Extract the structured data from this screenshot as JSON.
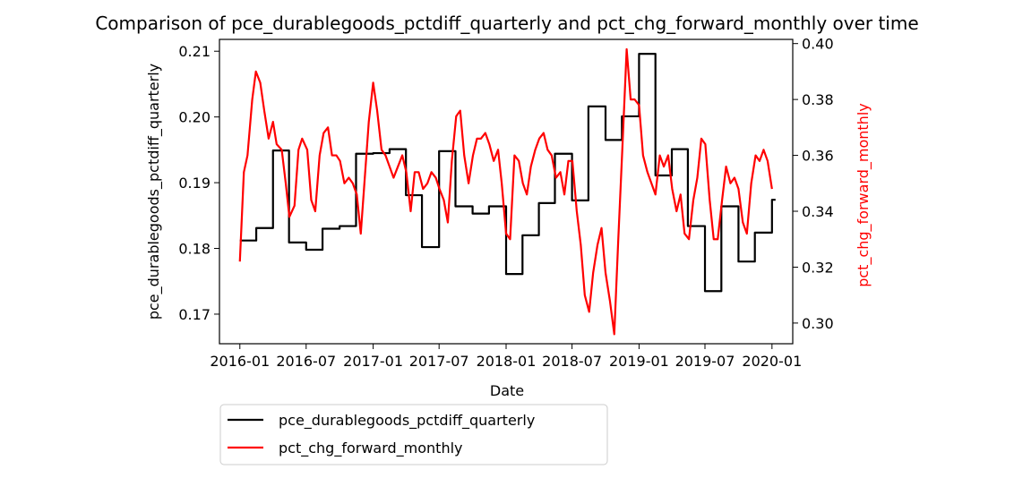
{
  "colors": {
    "left_series": "#000000",
    "right_series": "#ff0000",
    "background": "#ffffff"
  },
  "chart_data": {
    "type": "line",
    "title": "Comparison of pce_durablegoods_pctdiff_quarterly and pct_chg_forward_monthly over time",
    "xlabel": "Date",
    "ylabel_left": "pce_durablegoods_pctdiff_quarterly",
    "ylabel_right": "pct_chg_forward_monthly",
    "x_ticks": [
      "2016-01",
      "2016-07",
      "2017-01",
      "2017-07",
      "2018-01",
      "2018-07",
      "2019-01",
      "2019-07",
      "2020-01"
    ],
    "x_range": [
      "2015-11-06",
      "2020-02-27"
    ],
    "y_left": {
      "ticks": [
        "0.17",
        "0.18",
        "0.19",
        "0.20",
        "0.21"
      ],
      "range": [
        0.1655,
        0.2118
      ]
    },
    "y_right": {
      "ticks": [
        "0.30",
        "0.32",
        "0.34",
        "0.36",
        "0.38",
        "0.40"
      ],
      "range": [
        0.2926,
        0.4015
      ]
    },
    "grid": false,
    "legend_placement": "below plot, left",
    "legend": [
      "pce_durablegoods_pctdiff_quarterly",
      "pct_chg_forward_monthly"
    ],
    "series": [
      {
        "name": "pce_durablegoods_pctdiff_quarterly",
        "axis": "left",
        "color": "#000000",
        "step": true,
        "points": [
          [
            "2016-01-01",
            0.1812
          ],
          [
            "2016-02-15",
            0.1831
          ],
          [
            "2016-04-01",
            0.1949
          ],
          [
            "2016-05-15",
            0.1809
          ],
          [
            "2016-07-01",
            0.1798
          ],
          [
            "2016-08-15",
            0.183
          ],
          [
            "2016-10-01",
            0.1834
          ],
          [
            "2016-11-15",
            0.1944
          ],
          [
            "2017-01-01",
            0.1945
          ],
          [
            "2017-02-15",
            0.1951
          ],
          [
            "2017-04-01",
            0.1881
          ],
          [
            "2017-05-15",
            0.1802
          ],
          [
            "2017-07-01",
            0.1948
          ],
          [
            "2017-08-15",
            0.1864
          ],
          [
            "2017-10-01",
            0.1853
          ],
          [
            "2017-11-15",
            0.1864
          ],
          [
            "2018-01-01",
            0.1761
          ],
          [
            "2018-02-15",
            0.182
          ],
          [
            "2018-04-01",
            0.1869
          ],
          [
            "2018-05-15",
            0.1944
          ],
          [
            "2018-07-01",
            0.1873
          ],
          [
            "2018-08-15",
            0.2016
          ],
          [
            "2018-10-01",
            0.1965
          ],
          [
            "2018-11-15",
            0.2001
          ],
          [
            "2019-01-01",
            0.2096
          ],
          [
            "2019-02-15",
            0.1911
          ],
          [
            "2019-04-01",
            0.1951
          ],
          [
            "2019-05-15",
            0.1834
          ],
          [
            "2019-07-01",
            0.1735
          ],
          [
            "2019-08-15",
            0.1864
          ],
          [
            "2019-10-01",
            0.178
          ],
          [
            "2019-11-15",
            0.1824
          ],
          [
            "2020-01-01",
            0.1874
          ]
        ]
      },
      {
        "name": "pct_chg_forward_monthly",
        "axis": "right",
        "color": "#ff0000",
        "step": false,
        "points": [
          [
            "2016-01-01",
            0.322
          ],
          [
            "2016-01-12",
            0.354
          ],
          [
            "2016-01-22",
            0.36
          ],
          [
            "2016-02-04",
            0.38
          ],
          [
            "2016-02-14",
            0.39
          ],
          [
            "2016-02-26",
            0.386
          ],
          [
            "2016-03-08",
            0.376
          ],
          [
            "2016-03-20",
            0.366
          ],
          [
            "2016-04-01",
            0.372
          ],
          [
            "2016-04-11",
            0.364
          ],
          [
            "2016-04-25",
            0.362
          ],
          [
            "2016-05-06",
            0.35
          ],
          [
            "2016-05-16",
            0.338
          ],
          [
            "2016-05-30",
            0.342
          ],
          [
            "2016-06-10",
            0.362
          ],
          [
            "2016-06-20",
            0.366
          ],
          [
            "2016-07-04",
            0.362
          ],
          [
            "2016-07-15",
            0.344
          ],
          [
            "2016-07-26",
            0.34
          ],
          [
            "2016-08-07",
            0.36
          ],
          [
            "2016-08-18",
            0.368
          ],
          [
            "2016-08-30",
            0.37
          ],
          [
            "2016-09-10",
            0.36
          ],
          [
            "2016-09-22",
            0.36
          ],
          [
            "2016-10-02",
            0.358
          ],
          [
            "2016-10-14",
            0.35
          ],
          [
            "2016-10-26",
            0.352
          ],
          [
            "2016-11-06",
            0.35
          ],
          [
            "2016-11-17",
            0.346
          ],
          [
            "2016-11-28",
            0.332
          ],
          [
            "2016-12-09",
            0.352
          ],
          [
            "2016-12-20",
            0.372
          ],
          [
            "2017-01-01",
            0.386
          ],
          [
            "2017-01-12",
            0.376
          ],
          [
            "2017-01-24",
            0.362
          ],
          [
            "2017-02-04",
            0.36
          ],
          [
            "2017-02-15",
            0.356
          ],
          [
            "2017-02-26",
            0.352
          ],
          [
            "2017-03-10",
            0.356
          ],
          [
            "2017-03-22",
            0.36
          ],
          [
            "2017-04-02",
            0.354
          ],
          [
            "2017-04-14",
            0.34
          ],
          [
            "2017-04-25",
            0.354
          ],
          [
            "2017-05-06",
            0.354
          ],
          [
            "2017-05-18",
            0.348
          ],
          [
            "2017-05-30",
            0.35
          ],
          [
            "2017-06-10",
            0.354
          ],
          [
            "2017-06-22",
            0.352
          ],
          [
            "2017-07-02",
            0.348
          ],
          [
            "2017-07-14",
            0.344
          ],
          [
            "2017-07-25",
            0.336
          ],
          [
            "2017-08-05",
            0.358
          ],
          [
            "2017-08-17",
            0.374
          ],
          [
            "2017-08-28",
            0.376
          ],
          [
            "2017-09-08",
            0.36
          ],
          [
            "2017-09-20",
            0.35
          ],
          [
            "2017-10-02",
            0.36
          ],
          [
            "2017-10-13",
            0.366
          ],
          [
            "2017-10-24",
            0.366
          ],
          [
            "2017-11-05",
            0.368
          ],
          [
            "2017-11-16",
            0.364
          ],
          [
            "2017-11-28",
            0.358
          ],
          [
            "2017-12-10",
            0.362
          ],
          [
            "2017-12-20",
            0.35
          ],
          [
            "2018-01-01",
            0.332
          ],
          [
            "2018-01-12",
            0.33
          ],
          [
            "2018-01-24",
            0.36
          ],
          [
            "2018-02-05",
            0.358
          ],
          [
            "2018-02-16",
            0.35
          ],
          [
            "2018-02-27",
            0.346
          ],
          [
            "2018-03-10",
            0.356
          ],
          [
            "2018-03-22",
            0.362
          ],
          [
            "2018-04-02",
            0.366
          ],
          [
            "2018-04-14",
            0.368
          ],
          [
            "2018-04-25",
            0.362
          ],
          [
            "2018-05-06",
            0.36
          ],
          [
            "2018-05-18",
            0.352
          ],
          [
            "2018-05-30",
            0.354
          ],
          [
            "2018-06-10",
            0.346
          ],
          [
            "2018-06-21",
            0.358
          ],
          [
            "2018-07-02",
            0.358
          ],
          [
            "2018-07-14",
            0.34
          ],
          [
            "2018-07-25",
            0.328
          ],
          [
            "2018-08-05",
            0.31
          ],
          [
            "2018-08-17",
            0.304
          ],
          [
            "2018-08-28",
            0.318
          ],
          [
            "2018-09-09",
            0.328
          ],
          [
            "2018-09-20",
            0.334
          ],
          [
            "2018-10-01",
            0.318
          ],
          [
            "2018-10-13",
            0.308
          ],
          [
            "2018-10-25",
            0.296
          ],
          [
            "2018-11-05",
            0.33
          ],
          [
            "2018-11-16",
            0.362
          ],
          [
            "2018-11-28",
            0.398
          ],
          [
            "2018-12-09",
            0.38
          ],
          [
            "2018-12-20",
            0.38
          ],
          [
            "2019-01-01",
            0.378
          ],
          [
            "2019-01-12",
            0.36
          ],
          [
            "2019-01-24",
            0.354
          ],
          [
            "2019-02-04",
            0.35
          ],
          [
            "2019-02-15",
            0.346
          ],
          [
            "2019-02-27",
            0.36
          ],
          [
            "2019-03-10",
            0.356
          ],
          [
            "2019-03-22",
            0.36
          ],
          [
            "2019-04-02",
            0.348
          ],
          [
            "2019-04-14",
            0.34
          ],
          [
            "2019-04-25",
            0.346
          ],
          [
            "2019-05-06",
            0.332
          ],
          [
            "2019-05-18",
            0.33
          ],
          [
            "2019-05-30",
            0.344
          ],
          [
            "2019-06-10",
            0.352
          ],
          [
            "2019-06-21",
            0.366
          ],
          [
            "2019-07-02",
            0.364
          ],
          [
            "2019-07-14",
            0.344
          ],
          [
            "2019-07-25",
            0.33
          ],
          [
            "2019-08-05",
            0.33
          ],
          [
            "2019-08-17",
            0.344
          ],
          [
            "2019-08-28",
            0.356
          ],
          [
            "2019-09-09",
            0.35
          ],
          [
            "2019-09-20",
            0.352
          ],
          [
            "2019-10-01",
            0.348
          ],
          [
            "2019-10-13",
            0.336
          ],
          [
            "2019-10-24",
            0.332
          ],
          [
            "2019-11-05",
            0.35
          ],
          [
            "2019-11-17",
            0.36
          ],
          [
            "2019-11-28",
            0.358
          ],
          [
            "2019-12-09",
            0.362
          ],
          [
            "2019-12-20",
            0.358
          ],
          [
            "2020-01-01",
            0.348
          ]
        ]
      }
    ]
  }
}
